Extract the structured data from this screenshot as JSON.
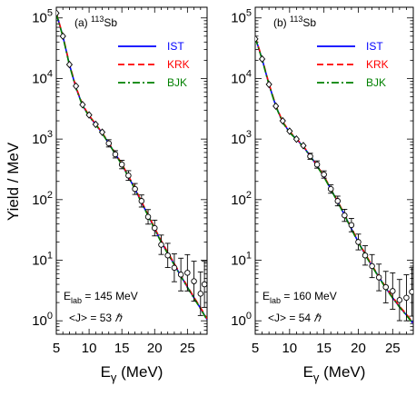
{
  "ylabel": "Yield / MeV",
  "xlabel_main": "E",
  "xlabel_sub": "γ",
  "xlabel_unit": " (MeV)",
  "colors": {
    "IST": "#0000ff",
    "KRK": "#ff0000",
    "BJK": "#008000"
  },
  "chart_data": [
    {
      "type": "line",
      "panel_label_prefix": "(a) ",
      "panel_label_mass": "113",
      "panel_label_element": "Sb",
      "xlim": [
        5,
        28
      ],
      "ylim": [
        0.6,
        150000
      ],
      "yscale": "log",
      "x_ticks": [
        5,
        10,
        15,
        20,
        25
      ],
      "y_ticks": [
        "10^0",
        "10^1",
        "10^2",
        "10^3",
        "10^4",
        "10^5"
      ],
      "legend_position": "top-right",
      "series": [
        {
          "name": "IST",
          "style": "solid",
          "x": [
            5,
            6,
            7,
            8,
            9,
            10,
            11,
            12,
            13,
            14,
            15,
            16,
            17,
            18,
            19,
            20,
            21,
            22,
            23,
            24,
            25,
            26,
            27,
            28
          ],
          "y": [
            120000,
            50000,
            17000,
            7000,
            3600,
            2400,
            1750,
            1250,
            850,
            570,
            380,
            240,
            150,
            90,
            55,
            33,
            20,
            13,
            8.5,
            5.5,
            3.6,
            2.4,
            1.6,
            1.05
          ]
        },
        {
          "name": "KRK",
          "style": "dashed",
          "x": [
            5,
            6,
            7,
            8,
            9,
            10,
            11,
            12,
            13,
            14,
            15,
            16,
            17,
            18,
            19,
            20,
            21,
            22,
            23,
            24,
            25,
            26,
            27,
            28
          ],
          "y": [
            122000,
            51000,
            17500,
            7200,
            3700,
            2450,
            1780,
            1270,
            870,
            585,
            390,
            245,
            155,
            93,
            57,
            34,
            21,
            13.5,
            8.8,
            5.7,
            3.7,
            2.45,
            1.65,
            1.08
          ]
        },
        {
          "name": "BJK",
          "style": "dashdot",
          "x": [
            5,
            6,
            7,
            8,
            9,
            10,
            11,
            12,
            13,
            14,
            15,
            16,
            17,
            18,
            19,
            20,
            21,
            22,
            23,
            24,
            25,
            26,
            27,
            28
          ],
          "y": [
            118000,
            49000,
            16600,
            6900,
            3550,
            2380,
            1730,
            1240,
            845,
            565,
            375,
            238,
            148,
            89,
            54,
            32.5,
            19.7,
            12.8,
            8.3,
            5.4,
            3.55,
            2.35,
            1.58,
            1.03
          ]
        }
      ],
      "points": [
        {
          "x": 5,
          "y": 120000,
          "err": 0
        },
        {
          "x": 6,
          "y": 50000,
          "err": 0
        },
        {
          "x": 7,
          "y": 17000,
          "err": 0
        },
        {
          "x": 8,
          "y": 7500,
          "err": 0
        },
        {
          "x": 9,
          "y": 3700,
          "err": 0
        },
        {
          "x": 10,
          "y": 2500,
          "err": 0
        },
        {
          "x": 11,
          "y": 1750,
          "err": 0
        },
        {
          "x": 12,
          "y": 1300,
          "err": 0
        },
        {
          "x": 13,
          "y": 850,
          "err": 0.06
        },
        {
          "x": 14,
          "y": 560,
          "err": 0.06
        },
        {
          "x": 15,
          "y": 380,
          "err": 0.07
        },
        {
          "x": 16,
          "y": 250,
          "err": 0.08
        },
        {
          "x": 17,
          "y": 150,
          "err": 0.09
        },
        {
          "x": 18,
          "y": 95,
          "err": 0.1
        },
        {
          "x": 19,
          "y": 52,
          "err": 0.12
        },
        {
          "x": 20,
          "y": 34,
          "err": 0.13
        },
        {
          "x": 21,
          "y": 18,
          "err": 0.16
        },
        {
          "x": 22,
          "y": 12,
          "err": 0.2
        },
        {
          "x": 23,
          "y": 7.5,
          "err": 0.23
        },
        {
          "x": 24,
          "y": 5.8,
          "err": 0.27
        },
        {
          "x": 25,
          "y": 6.2,
          "err": 0.3
        },
        {
          "x": 26,
          "y": 4.5,
          "err": 0.33
        },
        {
          "x": 27,
          "y": 2.8,
          "err": 0.36
        },
        {
          "x": 27.6,
          "y": 4.0,
          "err": 0.38
        }
      ],
      "annotation_E": "E",
      "annotation_E_sub": "lab",
      "annotation_E_value": " = 145 MeV",
      "annotation_J_prefix": "<J> = ",
      "annotation_J_value": "53",
      "annotation_J_unit": " ℏ"
    },
    {
      "type": "line",
      "panel_label_prefix": "(b) ",
      "panel_label_mass": "113",
      "panel_label_element": "Sb",
      "xlim": [
        5,
        28
      ],
      "ylim": [
        0.6,
        150000
      ],
      "yscale": "log",
      "x_ticks": [
        5,
        10,
        15,
        20,
        25
      ],
      "y_ticks": [
        "10^0",
        "10^1",
        "10^2",
        "10^3",
        "10^4",
        "10^5"
      ],
      "legend_position": "top-right",
      "series": [
        {
          "name": "IST",
          "style": "solid",
          "x": [
            5,
            6,
            7,
            8,
            9,
            10,
            11,
            12,
            13,
            14,
            15,
            16,
            17,
            18,
            19,
            20,
            21,
            22,
            23,
            24,
            25,
            26,
            27,
            28
          ],
          "y": [
            48000,
            21000,
            8000,
            3500,
            1900,
            1300,
            1000,
            750,
            530,
            360,
            240,
            150,
            92,
            56,
            33,
            20,
            12.5,
            8.0,
            5.3,
            3.5,
            2.4,
            1.7,
            1.25,
            0.9
          ]
        },
        {
          "name": "KRK",
          "style": "dashed",
          "x": [
            5,
            6,
            7,
            8,
            9,
            10,
            11,
            12,
            13,
            14,
            15,
            16,
            17,
            18,
            19,
            20,
            21,
            22,
            23,
            24,
            25,
            26,
            27,
            28
          ],
          "y": [
            49000,
            21500,
            8200,
            3580,
            1940,
            1330,
            1020,
            765,
            540,
            368,
            245,
            153,
            94,
            57,
            34,
            20.5,
            12.8,
            8.2,
            5.4,
            3.6,
            2.45,
            1.74,
            1.28,
            0.92
          ]
        },
        {
          "name": "BJK",
          "style": "dashdot",
          "x": [
            5,
            6,
            7,
            8,
            9,
            10,
            11,
            12,
            13,
            14,
            15,
            16,
            17,
            18,
            19,
            20,
            21,
            22,
            23,
            24,
            25,
            26,
            27,
            28
          ],
          "y": [
            47000,
            20600,
            7850,
            3450,
            1870,
            1280,
            985,
            740,
            522,
            355,
            237,
            148,
            91,
            55,
            32.5,
            19.6,
            12.3,
            7.9,
            5.2,
            3.45,
            2.37,
            1.68,
            1.23,
            0.89
          ]
        }
      ],
      "points": [
        {
          "x": 5,
          "y": 45000,
          "err": 0
        },
        {
          "x": 6,
          "y": 21000,
          "err": 0
        },
        {
          "x": 7,
          "y": 8000,
          "err": 0
        },
        {
          "x": 8,
          "y": 3500,
          "err": 0
        },
        {
          "x": 9,
          "y": 2000,
          "err": 0
        },
        {
          "x": 10,
          "y": 1350,
          "err": 0
        },
        {
          "x": 11,
          "y": 1000,
          "err": 0
        },
        {
          "x": 12,
          "y": 780,
          "err": 0
        },
        {
          "x": 13,
          "y": 520,
          "err": 0.05
        },
        {
          "x": 14,
          "y": 380,
          "err": 0.06
        },
        {
          "x": 15,
          "y": 260,
          "err": 0.06
        },
        {
          "x": 16,
          "y": 150,
          "err": 0.07
        },
        {
          "x": 17,
          "y": 95,
          "err": 0.08
        },
        {
          "x": 18,
          "y": 55,
          "err": 0.1
        },
        {
          "x": 19,
          "y": 38,
          "err": 0.11
        },
        {
          "x": 20,
          "y": 20,
          "err": 0.13
        },
        {
          "x": 21,
          "y": 12,
          "err": 0.16
        },
        {
          "x": 22,
          "y": 8,
          "err": 0.19
        },
        {
          "x": 23,
          "y": 5.2,
          "err": 0.22
        },
        {
          "x": 24,
          "y": 3.6,
          "err": 0.26
        },
        {
          "x": 25,
          "y": 3.1,
          "err": 0.3
        },
        {
          "x": 26,
          "y": 2.2,
          "err": 0.34
        },
        {
          "x": 27,
          "y": 2.4,
          "err": 0.38
        },
        {
          "x": 27.8,
          "y": 3.0,
          "err": 0.4
        }
      ],
      "annotation_E": "E",
      "annotation_E_sub": "lab",
      "annotation_E_value": " = 160 MeV",
      "annotation_J_prefix": "<J> = ",
      "annotation_J_value": "54",
      "annotation_J_unit": " ℏ"
    }
  ]
}
